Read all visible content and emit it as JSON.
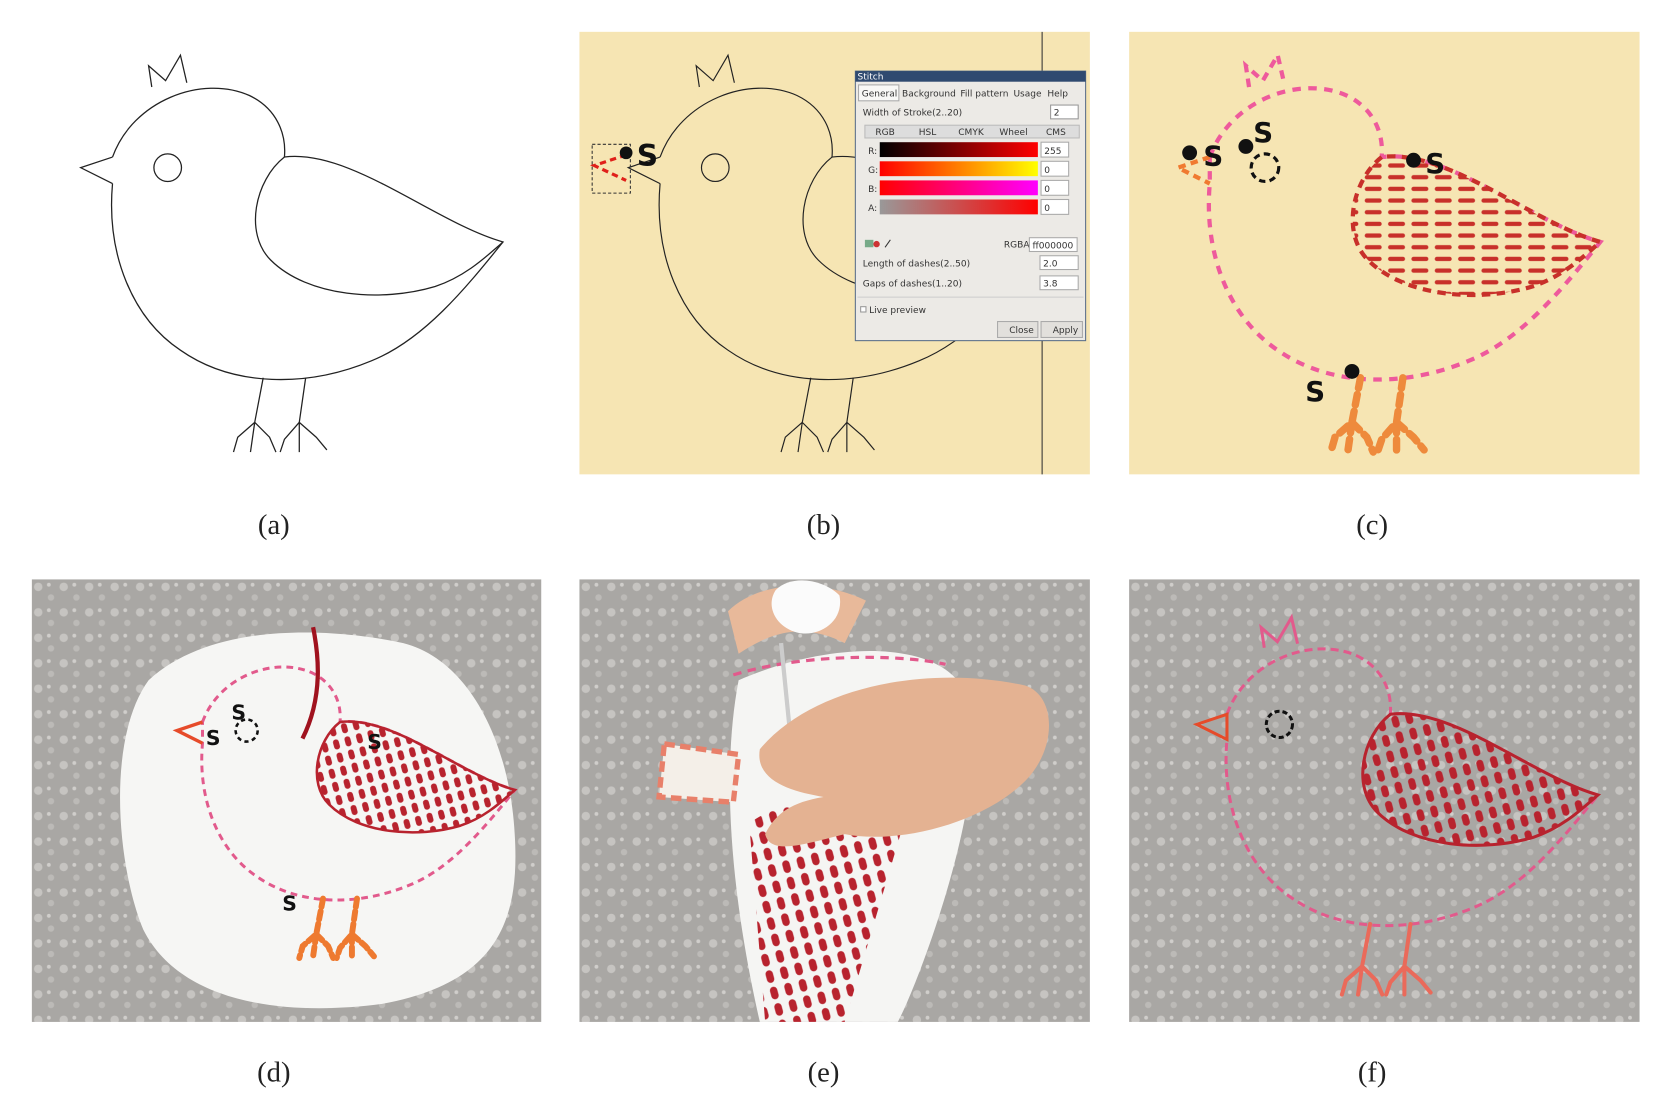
{
  "captions": [
    "(a)",
    "(b)",
    "(c)",
    "(d)",
    "(e)",
    "(f)"
  ],
  "stitch_dialog": {
    "title": "Stitch",
    "tabs": [
      "General",
      "Background",
      "Fill pattern",
      "Usage",
      "Help"
    ],
    "stroke_width_label": "Width of Stroke(2..20)",
    "stroke_width": "2",
    "color_tabs": [
      "RGB",
      "HSL",
      "CMYK",
      "Wheel",
      "CMS"
    ],
    "channels": [
      {
        "label": "R:",
        "value": "255"
      },
      {
        "label": "G:",
        "value": "0"
      },
      {
        "label": "B:",
        "value": "0"
      },
      {
        "label": "A:",
        "value": "0"
      }
    ],
    "rgba_label": "RGBA:",
    "rgba": "ff000000",
    "dash_length_label": "Length of dashes(2..50)",
    "dash_length": "2.0",
    "dash_gap_label": "Gaps of dashes(1..20)",
    "dash_gap": "3.8",
    "live_preview": "Live preview",
    "close": "Close",
    "apply": "Apply"
  },
  "markers_b": [
    "S"
  ],
  "markers_c": [
    "S",
    "S",
    "S",
    "S"
  ],
  "markers_d": [
    "S",
    "S",
    "S",
    "S"
  ]
}
